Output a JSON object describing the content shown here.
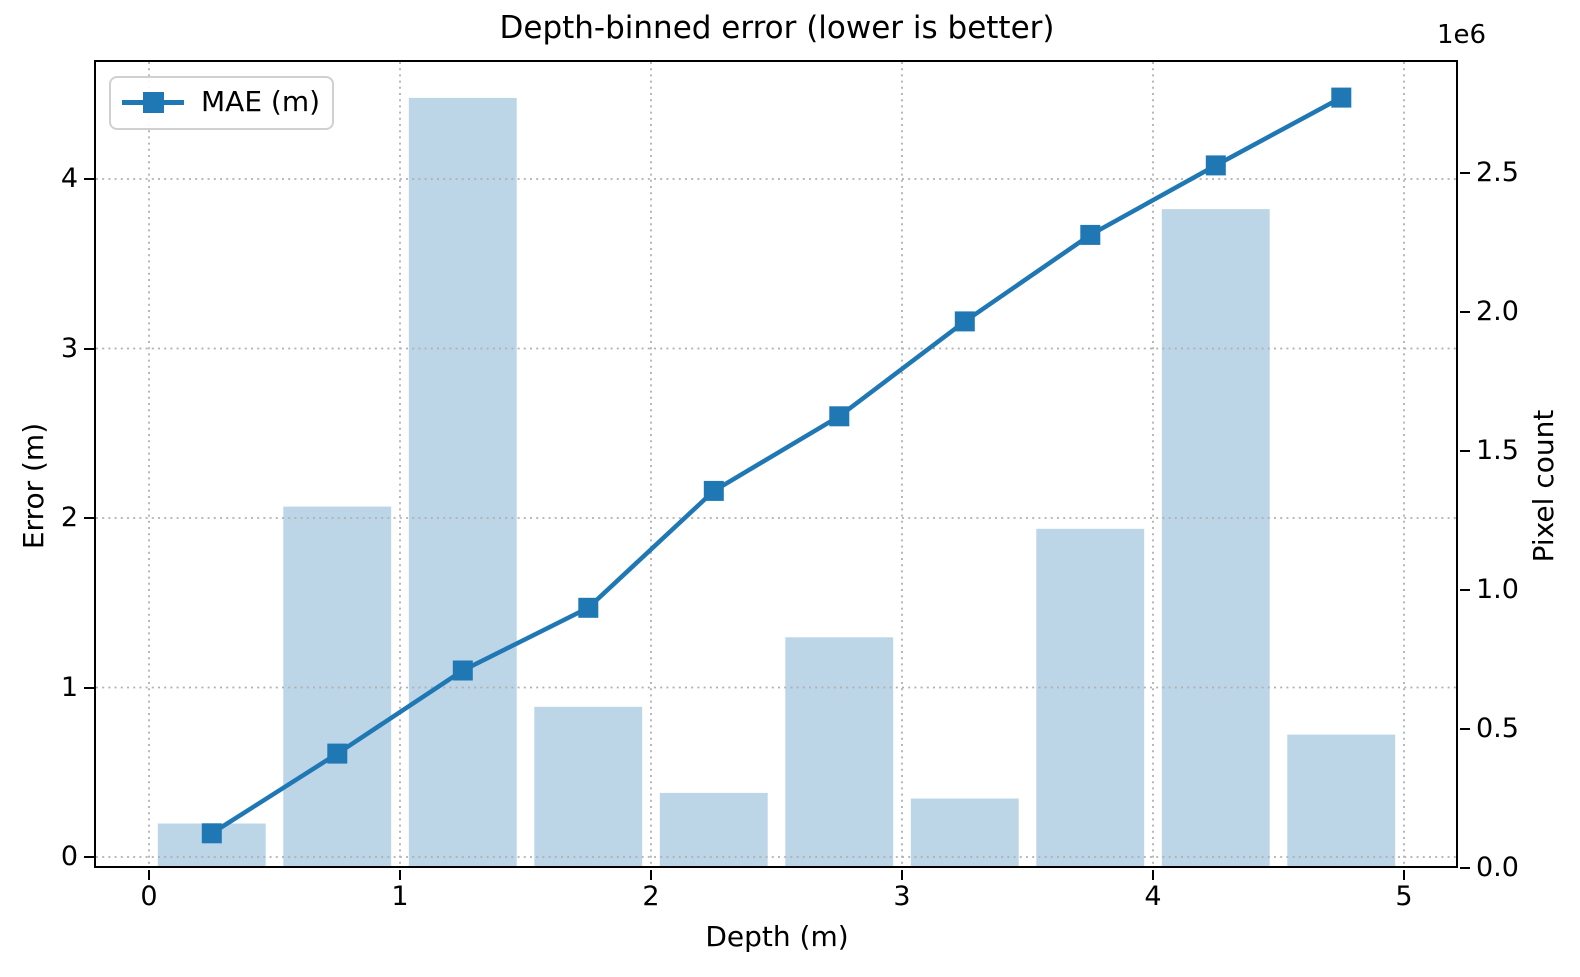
{
  "title": "Depth-binned error (lower is better)",
  "legend": {
    "items": [
      {
        "label": "MAE (m)",
        "marker": "square",
        "color": "#1f77b4"
      }
    ]
  },
  "axes": {
    "x": {
      "label": "Depth (m)",
      "tick_labels": [
        "0",
        "1",
        "2",
        "3",
        "4",
        "5"
      ],
      "tick_values": [
        0,
        1,
        2,
        3,
        4,
        5
      ]
    },
    "y_left": {
      "label": "Error (m)",
      "tick_labels": [
        "0",
        "1",
        "2",
        "3",
        "4"
      ],
      "tick_values": [
        0,
        1,
        2,
        3,
        4
      ]
    },
    "y_right": {
      "label": "Pixel count",
      "offset_text": "1e6",
      "tick_labels": [
        "0.0",
        "0.5",
        "1.0",
        "1.5",
        "2.0",
        "2.5"
      ],
      "tick_values": [
        0,
        500000,
        1000000,
        1500000,
        2000000,
        2500000
      ]
    }
  },
  "chart_data": {
    "type": "bar+line",
    "title": "Depth-binned error (lower is better)",
    "xlabel": "Depth (m)",
    "ylabel_left": "Error (m)",
    "ylabel_right": "Pixel count",
    "x_bin_centers": [
      0.25,
      0.75,
      1.25,
      1.75,
      2.25,
      2.75,
      3.25,
      3.75,
      4.25,
      4.75
    ],
    "series": [
      {
        "name": "MAE (m)",
        "type": "line",
        "y_axis": "left",
        "color": "#1f77b4",
        "marker": "square",
        "values": [
          0.14,
          0.61,
          1.1,
          1.47,
          2.16,
          2.6,
          3.16,
          3.67,
          4.08,
          4.48
        ]
      },
      {
        "name": "Pixel count",
        "type": "bar",
        "y_axis": "right",
        "color": "#bcd6e8",
        "bar_width": 0.43,
        "values": [
          160000,
          1300000,
          2770000,
          580000,
          270000,
          830000,
          250000,
          1220000,
          2370000,
          480000
        ]
      }
    ],
    "x_range": [
      -0.21,
      5.21
    ],
    "y_left_range": [
      -0.08,
      4.7
    ],
    "y_right_range": [
      0,
      2900000
    ],
    "grid": {
      "show": true,
      "style": "dotted",
      "color": "#b0b0b0"
    },
    "legend_position": "upper left"
  },
  "colors": {
    "line": "#1f77b4",
    "bar": "#bcd6e8",
    "grid": "#b0b0b0",
    "spine": "#000000",
    "legend_border": "#d0d0d0",
    "background": "#ffffff"
  }
}
